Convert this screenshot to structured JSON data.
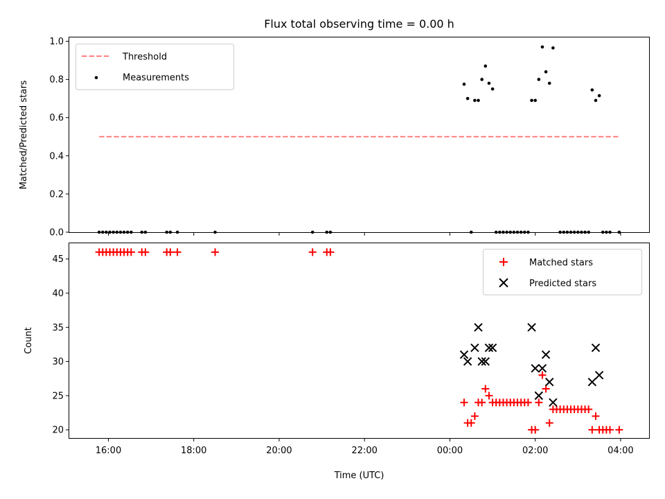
{
  "chart_data": [
    {
      "type": "scatter",
      "title": "Flux total observing time = 0.00 h",
      "xlabel": "",
      "ylabel": "Matched/Predicted stars",
      "xlim": [
        "15:05",
        "04:40"
      ],
      "ylim": [
        0,
        1.02
      ],
      "yticks": [
        "0.0",
        "0.2",
        "0.4",
        "0.6",
        "0.8",
        "1.0"
      ],
      "xticks": [
        "16:00",
        "18:00",
        "20:00",
        "22:00",
        "00:00",
        "02:00",
        "04:00"
      ],
      "xticks_labeled": false,
      "legend": {
        "position": "top-left",
        "entries": [
          "Threshold",
          "Measurements"
        ]
      },
      "threshold": {
        "name": "Threshold",
        "value": 0.5,
        "x_start": "15:47",
        "x_end": "03:57",
        "color": "#ff7f7f",
        "style": "dashed"
      },
      "series": [
        {
          "name": "Measurements",
          "color": "#000000",
          "marker": "dot",
          "points": [
            [
              "15:47",
              0.0
            ],
            [
              "15:52",
              0.0
            ],
            [
              "15:57",
              0.0
            ],
            [
              "16:02",
              0.0
            ],
            [
              "16:07",
              0.0
            ],
            [
              "16:12",
              0.0
            ],
            [
              "16:17",
              0.0
            ],
            [
              "16:22",
              0.0
            ],
            [
              "16:27",
              0.0
            ],
            [
              "16:32",
              0.0
            ],
            [
              "16:47",
              0.0
            ],
            [
              "16:52",
              0.0
            ],
            [
              "17:22",
              0.0
            ],
            [
              "17:27",
              0.0
            ],
            [
              "17:37",
              0.0
            ],
            [
              "18:30",
              0.0
            ],
            [
              "20:47",
              0.0
            ],
            [
              "21:07",
              0.0
            ],
            [
              "21:12",
              0.0
            ],
            [
              "00:20",
              0.775
            ],
            [
              "00:25",
              0.7
            ],
            [
              "00:30",
              0.0
            ],
            [
              "00:35",
              0.69
            ],
            [
              "00:40",
              0.69
            ],
            [
              "00:45",
              0.8
            ],
            [
              "00:50",
              0.87
            ],
            [
              "00:55",
              0.78
            ],
            [
              "01:00",
              0.75
            ],
            [
              "01:05",
              0.0
            ],
            [
              "01:10",
              0.0
            ],
            [
              "01:15",
              0.0
            ],
            [
              "01:20",
              0.0
            ],
            [
              "01:25",
              0.0
            ],
            [
              "01:30",
              0.0
            ],
            [
              "01:35",
              0.0
            ],
            [
              "01:40",
              0.0
            ],
            [
              "01:45",
              0.0
            ],
            [
              "01:50",
              0.0
            ],
            [
              "01:55",
              0.69
            ],
            [
              "02:00",
              0.69
            ],
            [
              "02:05",
              0.8
            ],
            [
              "02:10",
              0.97
            ],
            [
              "02:15",
              0.84
            ],
            [
              "02:20",
              0.78
            ],
            [
              "02:25",
              0.965
            ],
            [
              "02:35",
              0.0
            ],
            [
              "02:40",
              0.0
            ],
            [
              "02:45",
              0.0
            ],
            [
              "02:50",
              0.0
            ],
            [
              "02:55",
              0.0
            ],
            [
              "03:00",
              0.0
            ],
            [
              "03:05",
              0.0
            ],
            [
              "03:10",
              0.0
            ],
            [
              "03:15",
              0.0
            ],
            [
              "03:20",
              0.745
            ],
            [
              "03:25",
              0.69
            ],
            [
              "03:30",
              0.715
            ],
            [
              "03:35",
              0.0
            ],
            [
              "03:40",
              0.0
            ],
            [
              "03:45",
              0.0
            ],
            [
              "03:58",
              0.0
            ]
          ]
        }
      ]
    },
    {
      "type": "scatter",
      "title": "",
      "xlabel": "Time (UTC)",
      "ylabel": "Count",
      "xlim": [
        "15:05",
        "04:40"
      ],
      "ylim": [
        18.8,
        47.3
      ],
      "yticks": [
        "20",
        "25",
        "30",
        "35",
        "40",
        "45"
      ],
      "xticks": [
        "16:00",
        "18:00",
        "20:00",
        "22:00",
        "00:00",
        "02:00",
        "04:00"
      ],
      "legend": {
        "position": "top-right",
        "entries": [
          "Matched stars",
          "Predicted stars"
        ]
      },
      "series": [
        {
          "name": "Matched stars",
          "color": "#ff0000",
          "marker": "plus",
          "points": [
            [
              "15:47",
              46
            ],
            [
              "15:52",
              46
            ],
            [
              "15:57",
              46
            ],
            [
              "16:02",
              46
            ],
            [
              "16:07",
              46
            ],
            [
              "16:12",
              46
            ],
            [
              "16:17",
              46
            ],
            [
              "16:22",
              46
            ],
            [
              "16:27",
              46
            ],
            [
              "16:32",
              46
            ],
            [
              "16:47",
              46
            ],
            [
              "16:52",
              46
            ],
            [
              "17:22",
              46
            ],
            [
              "17:27",
              46
            ],
            [
              "17:37",
              46
            ],
            [
              "18:30",
              46
            ],
            [
              "20:47",
              46
            ],
            [
              "21:07",
              46
            ],
            [
              "21:12",
              46
            ],
            [
              "00:20",
              24
            ],
            [
              "00:25",
              21
            ],
            [
              "00:30",
              21
            ],
            [
              "00:35",
              22
            ],
            [
              "00:40",
              24
            ],
            [
              "00:45",
              24
            ],
            [
              "00:50",
              26
            ],
            [
              "00:55",
              25
            ],
            [
              "01:00",
              24
            ],
            [
              "01:05",
              24
            ],
            [
              "01:10",
              24
            ],
            [
              "01:15",
              24
            ],
            [
              "01:20",
              24
            ],
            [
              "01:25",
              24
            ],
            [
              "01:30",
              24
            ],
            [
              "01:35",
              24
            ],
            [
              "01:40",
              24
            ],
            [
              "01:45",
              24
            ],
            [
              "01:50",
              24
            ],
            [
              "01:55",
              20
            ],
            [
              "02:00",
              20
            ],
            [
              "02:05",
              24
            ],
            [
              "02:10",
              28
            ],
            [
              "02:15",
              26
            ],
            [
              "02:20",
              21
            ],
            [
              "02:25",
              23
            ],
            [
              "02:30",
              23
            ],
            [
              "02:35",
              23
            ],
            [
              "02:40",
              23
            ],
            [
              "02:45",
              23
            ],
            [
              "02:50",
              23
            ],
            [
              "02:55",
              23
            ],
            [
              "03:00",
              23
            ],
            [
              "03:05",
              23
            ],
            [
              "03:10",
              23
            ],
            [
              "03:15",
              23
            ],
            [
              "03:20",
              20
            ],
            [
              "03:25",
              22
            ],
            [
              "03:30",
              20
            ],
            [
              "03:35",
              20
            ],
            [
              "03:40",
              20
            ],
            [
              "03:45",
              20
            ],
            [
              "03:58",
              20
            ]
          ]
        },
        {
          "name": "Predicted stars",
          "color": "#000000",
          "marker": "x",
          "points": [
            [
              "00:20",
              31
            ],
            [
              "00:25",
              30
            ],
            [
              "00:35",
              32
            ],
            [
              "00:40",
              35
            ],
            [
              "00:45",
              30
            ],
            [
              "00:50",
              30
            ],
            [
              "00:55",
              32
            ],
            [
              "01:00",
              32
            ],
            [
              "01:55",
              35
            ],
            [
              "02:00",
              29
            ],
            [
              "02:05",
              25
            ],
            [
              "02:10",
              29
            ],
            [
              "02:15",
              31
            ],
            [
              "02:20",
              27
            ],
            [
              "02:25",
              24
            ],
            [
              "03:20",
              27
            ],
            [
              "03:25",
              32
            ],
            [
              "03:30",
              28
            ]
          ]
        }
      ]
    }
  ]
}
